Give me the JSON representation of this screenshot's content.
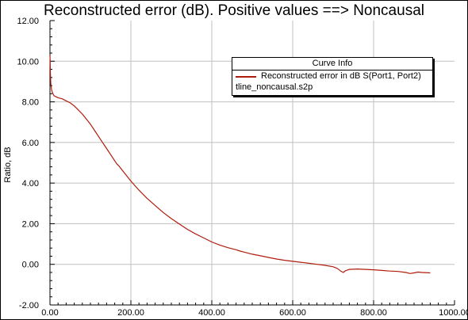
{
  "title": "Reconstructed error (dB). Positive values ==> Noncausal",
  "colors": {
    "curve": "#b01c0c",
    "grid": "#c0c0c0",
    "axis": "#000000",
    "background": "#ffffff"
  },
  "legend": {
    "header": "Curve Info",
    "entry_name": "Reconstructed error in dB S(Port1, Port2)",
    "entry_file": "tline_noncausal.s2p"
  },
  "chart_data": {
    "type": "line",
    "title": "Reconstructed error (dB). Positive values ==> Noncausal",
    "xlabel": "",
    "ylabel": "Ratio, dB",
    "xlim": [
      0,
      1000
    ],
    "ylim": [
      -2,
      12
    ],
    "grid": true,
    "legend_position": "top-right",
    "x_ticks": [
      "0.00",
      "200.00",
      "400.00",
      "600.00",
      "800.00",
      "1000.00"
    ],
    "y_ticks": [
      "-2.00",
      "0.00",
      "2.00",
      "4.00",
      "6.00",
      "8.00",
      "10.00",
      "12.00"
    ],
    "series": [
      {
        "name": "Reconstructed error in dB S(Port1, Port2)",
        "x": [
          0,
          1,
          2,
          4,
          6,
          10,
          15,
          20,
          30,
          40,
          50,
          60,
          70,
          80,
          90,
          100,
          110,
          120,
          130,
          140,
          150,
          160,
          165,
          170,
          180,
          200,
          220,
          240,
          260,
          280,
          300,
          320,
          340,
          360,
          380,
          400,
          420,
          440,
          460,
          470,
          480,
          500,
          520,
          540,
          560,
          580,
          600,
          620,
          640,
          660,
          680,
          700,
          710,
          720,
          725,
          730,
          740,
          760,
          780,
          800,
          820,
          840,
          860,
          880,
          890,
          900,
          910,
          920,
          940
        ],
        "y": [
          10.3,
          9.5,
          8.9,
          8.6,
          8.45,
          8.3,
          8.25,
          8.2,
          8.15,
          8.05,
          7.95,
          7.8,
          7.6,
          7.4,
          7.15,
          6.9,
          6.6,
          6.3,
          6.0,
          5.7,
          5.4,
          5.1,
          4.95,
          4.85,
          4.6,
          4.1,
          3.65,
          3.25,
          2.9,
          2.55,
          2.25,
          1.98,
          1.72,
          1.5,
          1.3,
          1.1,
          0.95,
          0.82,
          0.72,
          0.65,
          0.6,
          0.5,
          0.42,
          0.34,
          0.26,
          0.2,
          0.15,
          0.1,
          0.05,
          0.0,
          -0.05,
          -0.12,
          -0.2,
          -0.35,
          -0.4,
          -0.32,
          -0.25,
          -0.23,
          -0.25,
          -0.27,
          -0.3,
          -0.33,
          -0.35,
          -0.4,
          -0.45,
          -0.42,
          -0.38,
          -0.4,
          -0.42
        ]
      }
    ]
  }
}
